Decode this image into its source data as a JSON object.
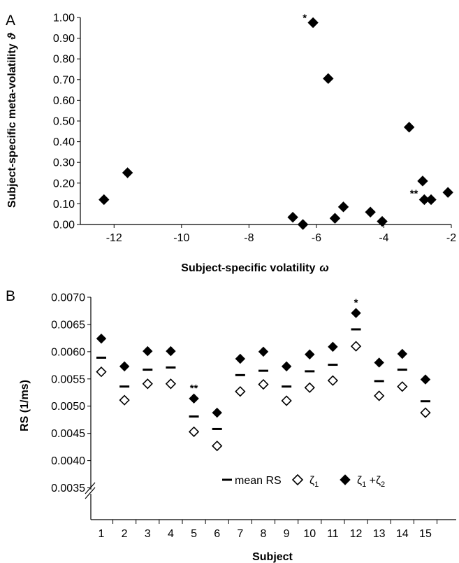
{
  "chart_data": [
    {
      "panel": "A",
      "type": "scatter",
      "xlabel": "Subject-specific volatility",
      "xlabel_symbol": "ω",
      "ylabel": "Subject-specific meta-volatility",
      "ylabel_symbol": "ϑ",
      "xlim": [
        -13,
        -2
      ],
      "ylim": [
        0,
        1
      ],
      "xticks": [
        "-12",
        "-10",
        "-8",
        "-6",
        "-4",
        "-2"
      ],
      "yticks": [
        "0.00",
        "0.10",
        "0.20",
        "0.30",
        "0.40",
        "0.50",
        "0.60",
        "0.70",
        "0.80",
        "0.90",
        "1.00"
      ],
      "marker": "filled-diamond",
      "points": [
        {
          "x": -12.3,
          "y": 0.12
        },
        {
          "x": -11.6,
          "y": 0.25
        },
        {
          "x": -6.7,
          "y": 0.035
        },
        {
          "x": -6.4,
          "y": 0.0
        },
        {
          "x": -6.1,
          "y": 0.975,
          "annotation": "*"
        },
        {
          "x": -5.65,
          "y": 0.705
        },
        {
          "x": -5.45,
          "y": 0.03
        },
        {
          "x": -5.2,
          "y": 0.085
        },
        {
          "x": -4.4,
          "y": 0.06
        },
        {
          "x": -4.05,
          "y": 0.015
        },
        {
          "x": -3.25,
          "y": 0.47
        },
        {
          "x": -2.85,
          "y": 0.21
        },
        {
          "x": -2.8,
          "y": 0.12,
          "annotation": "**"
        },
        {
          "x": -2.6,
          "y": 0.12
        },
        {
          "x": -2.1,
          "y": 0.155
        }
      ]
    },
    {
      "panel": "B",
      "type": "scatter",
      "xlabel": "Subject",
      "ylabel": "RS (1/ms)",
      "ylim": [
        0.0035,
        0.007
      ],
      "yticks": [
        "0.0035",
        "0.0040",
        "0.0045",
        "0.0050",
        "0.0055",
        "0.0060",
        "0.0065",
        "0.0070"
      ],
      "categories": [
        "1",
        "2",
        "3",
        "4",
        "5",
        "6",
        "7",
        "8",
        "9",
        "10",
        "11",
        "12",
        "13",
        "14",
        "15"
      ],
      "axis_break": true,
      "series": [
        {
          "name": "mean RS",
          "marker": "dash",
          "values": [
            0.00589,
            0.00536,
            0.00567,
            0.00571,
            0.00481,
            0.00458,
            0.00557,
            0.00565,
            0.00536,
            0.00564,
            0.00576,
            0.00641,
            0.00546,
            0.00567,
            0.00509
          ]
        },
        {
          "name": "ζ1",
          "marker": "open-diamond",
          "values": [
            0.00563,
            0.00511,
            0.00541,
            0.00541,
            0.00453,
            0.00427,
            0.00527,
            0.0054,
            0.0051,
            0.00534,
            0.00547,
            0.0061,
            0.00519,
            0.00536,
            0.00488
          ]
        },
        {
          "name": "ζ1 +ζ2",
          "marker": "filled-diamond",
          "values": [
            0.00624,
            0.00573,
            0.00601,
            0.00601,
            0.00514,
            0.00488,
            0.00587,
            0.006,
            0.00573,
            0.00595,
            0.00609,
            0.00671,
            0.0058,
            0.00596,
            0.00549
          ]
        }
      ],
      "annotations": [
        {
          "category": "5",
          "text": "**"
        },
        {
          "category": "12",
          "text": "*"
        }
      ],
      "legend_labels": {
        "mean": "mean RS",
        "z1_base": "ζ",
        "z1_sub": "1",
        "z12_base1": "ζ",
        "z12_sub1": "1",
        "z12_mid": " +ζ",
        "z12_sub2": "2"
      }
    }
  ]
}
